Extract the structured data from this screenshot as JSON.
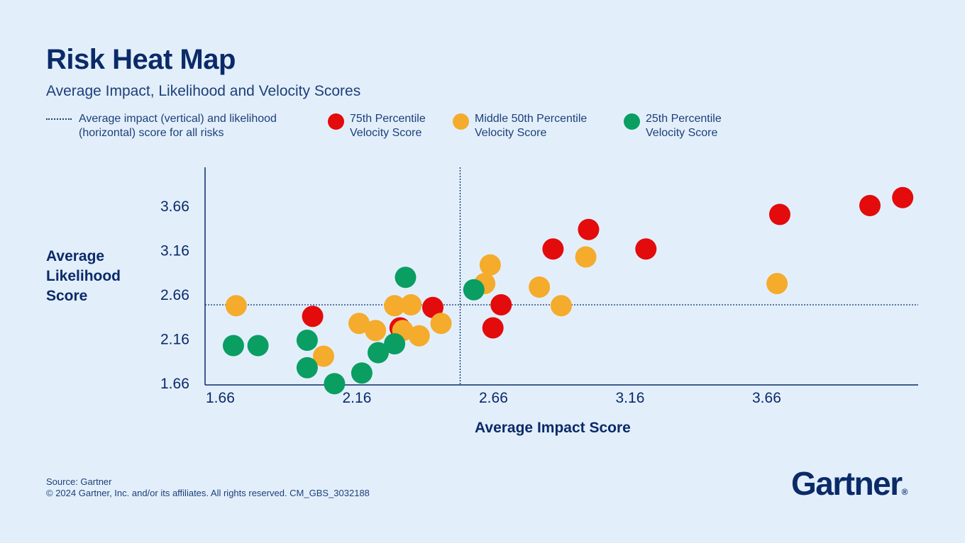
{
  "header": {
    "title": "Risk Heat Map",
    "subtitle": "Average Impact, Likelihood and Velocity Scores"
  },
  "legend": {
    "average_line": "Average impact (vertical) and likelihood\n(horizontal) score for all risks",
    "p75": "75th Percentile\nVelocity Score",
    "p50": "Middle 50th Percentile\nVelocity Score",
    "p25": "25th Percentile\nVelocity Score"
  },
  "colors": {
    "p75": "#e30b0b",
    "p50": "#f5ab2b",
    "p25": "#0a9e62",
    "axis": "#0b2a68",
    "background": "#e2effb"
  },
  "footer": {
    "source": "Source: Gartner",
    "copyright": "© 2024 Gartner, Inc. and/or its affiliates. All rights reserved. CM_GBS_3032188"
  },
  "logo": {
    "text": "Gartner",
    "mark": "®"
  },
  "chart_data": {
    "type": "scatter",
    "xlabel": "Average Impact Score",
    "ylabel": "Average\nLikelihood\nScore",
    "xlim": [
      1.66,
      4.26
    ],
    "ylim": [
      1.66,
      4.11
    ],
    "xticks": [
      "1.66",
      "2.16",
      "2.66",
      "3.16",
      "3.66"
    ],
    "yticks": [
      "1.66",
      "2.16",
      "2.66",
      "3.16",
      "3.66"
    ],
    "average_lines": {
      "impact": 2.56,
      "likelihood": 2.54
    },
    "grid": false,
    "legend_placement": "top",
    "series": [
      {
        "name": "75th Percentile Velocity Score",
        "color_key": "p75",
        "points": [
          [
            2.02,
            2.41
          ],
          [
            2.34,
            2.28
          ],
          [
            2.46,
            2.51
          ],
          [
            2.68,
            2.28
          ],
          [
            2.71,
            2.54
          ],
          [
            2.9,
            3.17
          ],
          [
            3.03,
            3.39
          ],
          [
            3.24,
            3.17
          ],
          [
            3.73,
            3.56
          ],
          [
            4.06,
            3.66
          ],
          [
            4.18,
            3.75
          ]
        ]
      },
      {
        "name": "Middle 50th Percentile Velocity Score",
        "color_key": "p50",
        "points": [
          [
            1.74,
            2.53
          ],
          [
            2.06,
            1.96
          ],
          [
            2.19,
            2.33
          ],
          [
            2.25,
            2.25
          ],
          [
            2.32,
            2.53
          ],
          [
            2.35,
            2.25
          ],
          [
            2.38,
            2.54
          ],
          [
            2.41,
            2.19
          ],
          [
            2.49,
            2.33
          ],
          [
            2.65,
            2.78
          ],
          [
            2.67,
            2.99
          ],
          [
            2.85,
            2.74
          ],
          [
            2.93,
            2.53
          ],
          [
            3.02,
            3.08
          ],
          [
            3.72,
            2.78
          ]
        ]
      },
      {
        "name": "25th Percentile Velocity Score",
        "color_key": "p25",
        "points": [
          [
            1.73,
            2.08
          ],
          [
            1.82,
            2.08
          ],
          [
            2.0,
            2.14
          ],
          [
            2.0,
            1.83
          ],
          [
            2.1,
            1.65
          ],
          [
            2.2,
            1.77
          ],
          [
            2.26,
            2.0
          ],
          [
            2.32,
            2.1
          ],
          [
            2.36,
            2.85
          ],
          [
            2.61,
            2.71
          ]
        ]
      }
    ]
  }
}
